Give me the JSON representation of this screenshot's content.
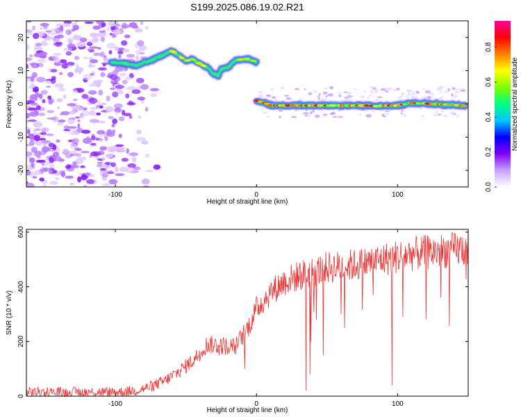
{
  "page_title": "S199.2025.086.19.02.R21",
  "chart_data": [
    {
      "type": "heatmap",
      "title": "S199.2025.086.19.02.R21",
      "xlabel": "Height of straight line (km)",
      "ylabel": "Frequency (Hz)",
      "xlim": [
        -163,
        150
      ],
      "ylim": [
        -25,
        25
      ],
      "xticks": [
        -100,
        0,
        100
      ],
      "yticks": [
        -20,
        -10,
        0,
        10,
        20
      ],
      "colorbar": {
        "label": "Normalized spectral amplitude",
        "range": [
          0.0,
          0.95
        ],
        "ticks": [
          0.0,
          0.2,
          0.4,
          0.6,
          0.8
        ],
        "colormap": [
          "#ffffff",
          "#c8a0ff",
          "#8000ff",
          "#0000ff",
          "#00c8ff",
          "#00ff80",
          "#80ff00",
          "#ffff00",
          "#ff8000",
          "#ff0000",
          "#ff00a0"
        ]
      },
      "ridge_upper": {
        "x": [
          -103,
          -95,
          -85,
          -80,
          -75,
          -70,
          -65,
          -60,
          -55,
          -50,
          -45,
          -40,
          -35,
          -30,
          -27,
          -25,
          -20,
          -15,
          -10,
          -5,
          0
        ],
        "freq": [
          12.5,
          12.3,
          11.5,
          12.5,
          13,
          14,
          15,
          16,
          14.5,
          13,
          13.5,
          12,
          11,
          9,
          8.5,
          10.5,
          11,
          13,
          13.5,
          13.5,
          12.5
        ]
      },
      "ridge_lower": {
        "x": [
          0,
          5,
          10,
          20,
          40,
          60,
          80,
          85,
          90,
          100,
          110,
          120,
          130,
          140,
          148
        ],
        "freq": [
          1,
          0.5,
          -0.5,
          -0.5,
          -0.5,
          -0.5,
          -0.5,
          -0.7,
          -0.5,
          -0.5,
          0.3,
          0.1,
          -0.1,
          -0.3,
          -0.6
        ]
      },
      "noise_region_x": [
        -163,
        -80
      ]
    },
    {
      "type": "line",
      "xlabel": "Height of straight line (km)",
      "ylabel": "SNR (10 * v/v)",
      "xlim": [
        -163,
        150
      ],
      "ylim": [
        0,
        610
      ],
      "xticks": [
        -100,
        0,
        100
      ],
      "yticks": [
        0,
        200,
        400,
        600
      ],
      "color": "#ee3333",
      "envelope": {
        "x": [
          -163,
          -100,
          -85,
          -75,
          -65,
          -55,
          -45,
          -35,
          -25,
          -15,
          -10,
          -5,
          0,
          10,
          20,
          30,
          50,
          70,
          90,
          110,
          130,
          150
        ],
        "y": [
          15,
          15,
          20,
          35,
          55,
          90,
          130,
          190,
          185,
          180,
          220,
          260,
          320,
          380,
          420,
          440,
          470,
          480,
          500,
          520,
          530,
          540
        ]
      },
      "noise_amplitude": 35,
      "dips": [
        {
          "x": 35,
          "y": 20
        },
        {
          "x": 38,
          "y": 80
        },
        {
          "x": 96,
          "y": 40
        },
        {
          "x": 60,
          "y": 300
        },
        {
          "x": 120,
          "y": 280
        }
      ]
    }
  ]
}
